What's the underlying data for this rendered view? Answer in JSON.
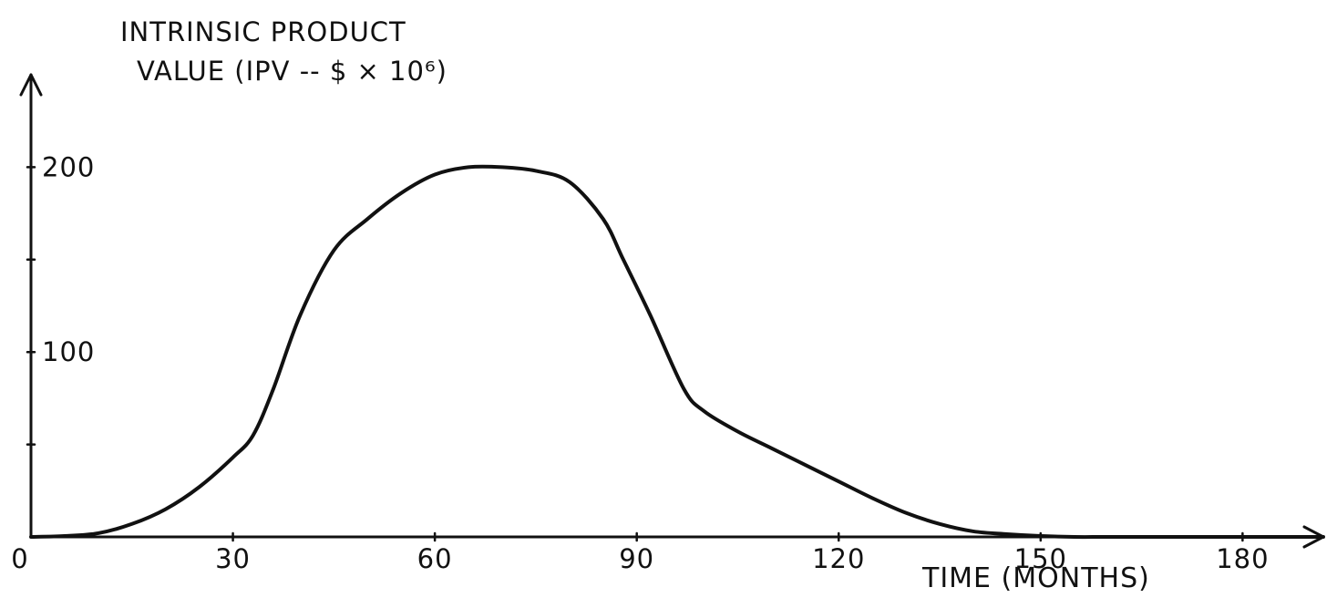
{
  "chart_data": {
    "type": "line",
    "title": "",
    "ylabel": {
      "line1": "INTRINSIC PRODUCT",
      "line2": "VALUE (IPV -- $ × 10⁶)"
    },
    "xlabel": "TIME (MONTHS)",
    "xlim": [
      0,
      192
    ],
    "ylim": [
      0,
      250
    ],
    "x_ticks": [
      0,
      30,
      60,
      90,
      120,
      150,
      180
    ],
    "x_tick_labels": [
      "0",
      "30",
      "60",
      "90",
      "120",
      "150",
      "180"
    ],
    "y_ticks": [
      50,
      100,
      150,
      200
    ],
    "y_tick_labels": [
      "",
      "100",
      "",
      "200"
    ],
    "grid": false,
    "legend": "none",
    "series": [
      {
        "x": [
          0,
          5,
          10,
          15,
          20,
          25,
          30,
          33,
          36,
          40,
          45,
          50,
          55,
          60,
          65,
          70,
          75,
          80,
          85,
          88,
          92,
          97,
          100,
          105,
          110,
          115,
          120,
          125,
          130,
          135,
          140,
          145,
          150,
          155,
          160,
          170,
          180,
          192
        ],
        "y": [
          0,
          0.5,
          2,
          7,
          15,
          27,
          43,
          55,
          80,
          120,
          155,
          172,
          186,
          196,
          200,
          200,
          198,
          192,
          172,
          150,
          120,
          80,
          68,
          57,
          48,
          39,
          30,
          21,
          13,
          7,
          3,
          1.5,
          0.5,
          0,
          0,
          0,
          0,
          0
        ],
        "color": "#111111"
      }
    ]
  }
}
